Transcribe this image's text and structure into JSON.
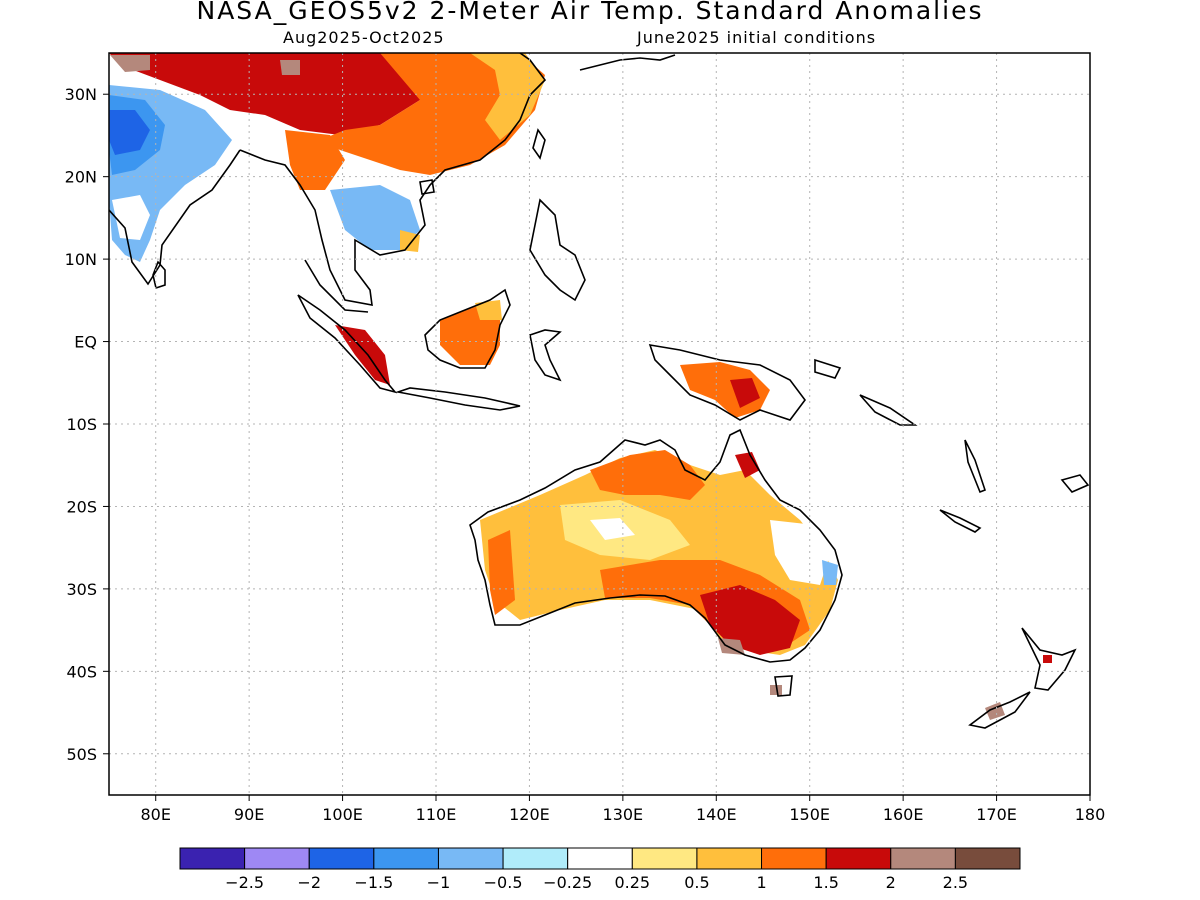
{
  "title": "NASA_GEOS5v2 2-Meter Air Temp. Standard Anomalies",
  "subtitle_left": "Aug2025-Oct2025",
  "subtitle_right": "June2025 initial conditions",
  "map": {
    "lon_range": [
      75,
      180
    ],
    "lat_range": [
      -55,
      35
    ],
    "lon_ticks": [
      "80E",
      "90E",
      "100E",
      "110E",
      "120E",
      "130E",
      "140E",
      "150E",
      "160E",
      "170E",
      "180"
    ],
    "lat_ticks": [
      "30N",
      "20N",
      "10N",
      "EQ",
      "10S",
      "20S",
      "30S",
      "40S",
      "50S"
    ],
    "grid": "dotted"
  },
  "colorbar": {
    "colors": [
      "#3a22b0",
      "#9e88f4",
      "#1e64e6",
      "#3c96f0",
      "#78b9f5",
      "#b0ecfa",
      "#ffffff",
      "#ffe882",
      "#ffbf3c",
      "#ff6e0a",
      "#c80a0a",
      "#b4887c",
      "#784c3c"
    ],
    "tick_labels": [
      "-2.5",
      "-2",
      "-1.5",
      "-1",
      "-0.5",
      "-0.25",
      "0.25",
      "0.5",
      "1",
      "1.5",
      "2",
      "2.5"
    ]
  }
}
